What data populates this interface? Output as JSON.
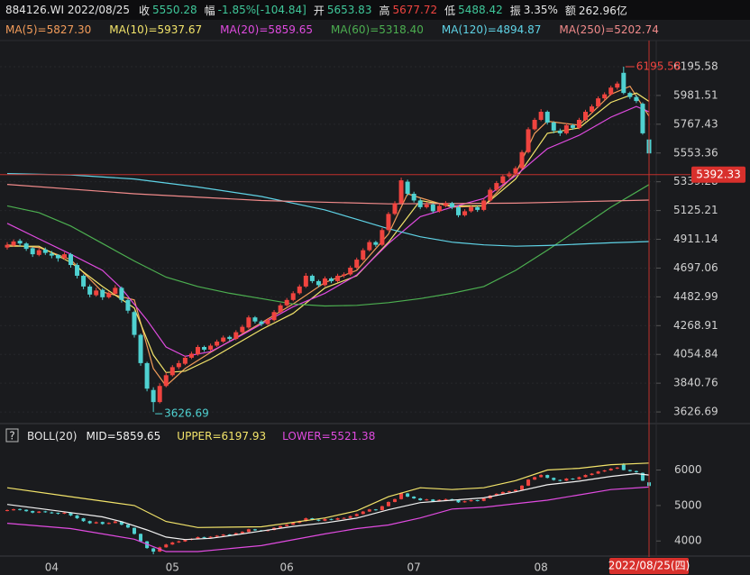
{
  "quote": {
    "code": "884126.WI 2022/08/25",
    "fields": [
      {
        "label": "收",
        "value": "5550.28",
        "color": "#3fc89a"
      },
      {
        "label": "幅",
        "value": "-1.85%[-104.84]",
        "color": "#3fc89a"
      },
      {
        "label": "开",
        "value": "5653.83",
        "color": "#3fc89a"
      },
      {
        "label": "高",
        "value": "5677.72",
        "color": "#f0443f"
      },
      {
        "label": "低",
        "value": "5488.42",
        "color": "#3fc89a"
      },
      {
        "label": "振",
        "value": "3.35%",
        "color": "#e6e6e6"
      },
      {
        "label": "额",
        "value": "262.96亿",
        "color": "#e6e6e6"
      }
    ]
  },
  "chart_data": [
    {
      "type": "candlestick",
      "up_color": "#f0443f",
      "down_color": "#4fd1d1",
      "grid": true,
      "categories": [
        null,
        null,
        null,
        null,
        null,
        null,
        null,
        "04",
        null,
        null,
        null,
        null,
        null,
        null,
        null,
        null,
        null,
        null,
        null,
        null,
        null,
        null,
        null,
        null,
        null,
        null,
        "05",
        null,
        null,
        null,
        null,
        null,
        null,
        null,
        null,
        null,
        null,
        null,
        null,
        null,
        null,
        null,
        null,
        null,
        "06",
        null,
        null,
        null,
        null,
        null,
        null,
        null,
        null,
        null,
        null,
        null,
        null,
        null,
        null,
        null,
        null,
        null,
        null,
        null,
        "07",
        null,
        null,
        null,
        null,
        null,
        null,
        null,
        null,
        null,
        null,
        null,
        null,
        null,
        null,
        null,
        null,
        null,
        null,
        null,
        "08",
        null,
        null,
        null,
        null,
        null,
        null,
        null,
        null,
        null,
        null,
        null,
        null,
        null,
        null,
        null,
        null,
        null
      ],
      "ohlc": [
        [
          4850,
          4890,
          4835,
          4870
        ],
        [
          4865,
          4910,
          4855,
          4895
        ],
        [
          4900,
          4915,
          4860,
          4880
        ],
        [
          4880,
          4890,
          4825,
          4840
        ],
        [
          4845,
          4855,
          4780,
          4800
        ],
        [
          4795,
          4845,
          4785,
          4830
        ],
        [
          4835,
          4850,
          4795,
          4810
        ],
        [
          4805,
          4825,
          4770,
          4790
        ],
        [
          4795,
          4800,
          4745,
          4770
        ],
        [
          4770,
          4815,
          4760,
          4800
        ],
        [
          4800,
          4810,
          4700,
          4720
        ],
        [
          4720,
          4735,
          4620,
          4640
        ],
        [
          4640,
          4650,
          4540,
          4560
        ],
        [
          4560,
          4575,
          4480,
          4500
        ],
        [
          4495,
          4550,
          4485,
          4530
        ],
        [
          4535,
          4545,
          4460,
          4480
        ],
        [
          4480,
          4525,
          4470,
          4510
        ],
        [
          4505,
          4570,
          4500,
          4550
        ],
        [
          4550,
          4560,
          4440,
          4460
        ],
        [
          4460,
          4470,
          4360,
          4380
        ],
        [
          4370,
          4380,
          4180,
          4200
        ],
        [
          4200,
          4210,
          3970,
          3990
        ],
        [
          3990,
          4000,
          3780,
          3800
        ],
        [
          3790,
          3810,
          3626.69,
          3700
        ],
        [
          3700,
          3840,
          3690,
          3820
        ],
        [
          3820,
          3920,
          3810,
          3900
        ],
        [
          3900,
          3975,
          3890,
          3960
        ],
        [
          3960,
          4010,
          3945,
          3990
        ],
        [
          3985,
          4045,
          3975,
          4030
        ],
        [
          4030,
          4075,
          4020,
          4060
        ],
        [
          4055,
          4125,
          4045,
          4110
        ],
        [
          4110,
          4120,
          4075,
          4090
        ],
        [
          4090,
          4135,
          4080,
          4120
        ],
        [
          4120,
          4165,
          4110,
          4150
        ],
        [
          4150,
          4195,
          4140,
          4180
        ],
        [
          4185,
          4195,
          4155,
          4170
        ],
        [
          4170,
          4235,
          4160,
          4220
        ],
        [
          4220,
          4275,
          4210,
          4260
        ],
        [
          4255,
          4345,
          4245,
          4330
        ],
        [
          4330,
          4340,
          4285,
          4300
        ],
        [
          4300,
          4310,
          4265,
          4280
        ],
        [
          4280,
          4325,
          4270,
          4310
        ],
        [
          4310,
          4385,
          4300,
          4370
        ],
        [
          4370,
          4435,
          4360,
          4420
        ],
        [
          4420,
          4475,
          4410,
          4460
        ],
        [
          4460,
          4525,
          4450,
          4510
        ],
        [
          4510,
          4575,
          4500,
          4560
        ],
        [
          4560,
          4660,
          4550,
          4640
        ],
        [
          4640,
          4650,
          4585,
          4600
        ],
        [
          4600,
          4610,
          4555,
          4570
        ],
        [
          4570,
          4635,
          4560,
          4620
        ],
        [
          4620,
          4630,
          4585,
          4600
        ],
        [
          4600,
          4655,
          4590,
          4640
        ],
        [
          4640,
          4665,
          4625,
          4650
        ],
        [
          4650,
          4715,
          4640,
          4700
        ],
        [
          4700,
          4775,
          4690,
          4760
        ],
        [
          4760,
          4845,
          4750,
          4830
        ],
        [
          4830,
          4905,
          4820,
          4890
        ],
        [
          4890,
          4900,
          4855,
          4870
        ],
        [
          4870,
          4995,
          4860,
          4980
        ],
        [
          4980,
          5115,
          4970,
          5100
        ],
        [
          5100,
          5195,
          5090,
          5180
        ],
        [
          5180,
          5370,
          5170,
          5350
        ],
        [
          5340,
          5355,
          5235,
          5250
        ],
        [
          5250,
          5265,
          5185,
          5200
        ],
        [
          5200,
          5215,
          5135,
          5150
        ],
        [
          5150,
          5190,
          5140,
          5170
        ],
        [
          5170,
          5180,
          5105,
          5120
        ],
        [
          5120,
          5175,
          5110,
          5160
        ],
        [
          5160,
          5195,
          5150,
          5180
        ],
        [
          5180,
          5190,
          5135,
          5150
        ],
        [
          5150,
          5160,
          5075,
          5090
        ],
        [
          5090,
          5135,
          5080,
          5120
        ],
        [
          5120,
          5165,
          5110,
          5150
        ],
        [
          5150,
          5160,
          5115,
          5130
        ],
        [
          5130,
          5215,
          5120,
          5200
        ],
        [
          5200,
          5295,
          5190,
          5280
        ],
        [
          5280,
          5345,
          5270,
          5330
        ],
        [
          5330,
          5395,
          5320,
          5380
        ],
        [
          5380,
          5415,
          5365,
          5400
        ],
        [
          5400,
          5455,
          5390,
          5440
        ],
        [
          5440,
          5575,
          5430,
          5560
        ],
        [
          5560,
          5745,
          5550,
          5730
        ],
        [
          5730,
          5815,
          5720,
          5800
        ],
        [
          5800,
          5880,
          5790,
          5860
        ],
        [
          5860,
          5870,
          5765,
          5780
        ],
        [
          5780,
          5790,
          5700,
          5720
        ],
        [
          5720,
          5735,
          5680,
          5700
        ],
        [
          5700,
          5775,
          5690,
          5760
        ],
        [
          5760,
          5770,
          5725,
          5740
        ],
        [
          5740,
          5815,
          5730,
          5800
        ],
        [
          5800,
          5875,
          5790,
          5860
        ],
        [
          5860,
          5915,
          5850,
          5900
        ],
        [
          5900,
          5975,
          5890,
          5960
        ],
        [
          5960,
          6005,
          5945,
          5990
        ],
        [
          5990,
          6055,
          5980,
          6040
        ],
        [
          6040,
          6085,
          6025,
          6070
        ],
        [
          6150,
          6195.58,
          5990,
          6000
        ],
        [
          6000,
          6010,
          5955,
          5970
        ],
        [
          5970,
          5985,
          5925,
          5940
        ],
        [
          5920,
          5930,
          5690,
          5700
        ],
        [
          5653.83,
          5677.72,
          5488.42,
          5550.28
        ]
      ],
      "series": [
        {
          "name": "MA(5)=5827.30",
          "color": "#f39c5a",
          "x": [
            0,
            5,
            10,
            15,
            20,
            23,
            25,
            28,
            32,
            36,
            40,
            45,
            50,
            55,
            60,
            63,
            65,
            70,
            75,
            80,
            83,
            85,
            90,
            95,
            98,
            101
          ],
          "values": [
            4870,
            4850,
            4760,
            4520,
            4460,
            3950,
            3820,
            3950,
            4070,
            4180,
            4290,
            4430,
            4590,
            4680,
            4950,
            5250,
            5220,
            5150,
            5160,
            5400,
            5700,
            5790,
            5760,
            5990,
            6050,
            5827.3
          ]
        },
        {
          "name": "MA(10)=5937.67",
          "color": "#f3e46a",
          "x": [
            0,
            5,
            10,
            15,
            20,
            23,
            25,
            28,
            32,
            36,
            40,
            45,
            50,
            55,
            60,
            65,
            70,
            75,
            80,
            85,
            90,
            95,
            99,
            101
          ],
          "values": [
            4860,
            4860,
            4740,
            4560,
            4400,
            4050,
            3920,
            3930,
            4020,
            4130,
            4240,
            4360,
            4550,
            4640,
            4890,
            5200,
            5160,
            5160,
            5360,
            5700,
            5740,
            5930,
            6000,
            5937.67
          ]
        },
        {
          "name": "MA(20)=5859.65",
          "color": "#e04be0",
          "x": [
            0,
            5,
            10,
            15,
            18,
            22,
            25,
            28,
            32,
            36,
            40,
            45,
            50,
            55,
            60,
            65,
            70,
            75,
            80,
            85,
            90,
            95,
            99,
            101
          ],
          "values": [
            5030,
            4915,
            4800,
            4680,
            4545,
            4310,
            4110,
            4040,
            4075,
            4175,
            4280,
            4410,
            4510,
            4645,
            4880,
            5080,
            5150,
            5215,
            5385,
            5585,
            5685,
            5820,
            5900,
            5859.65
          ]
        },
        {
          "name": "MA(60)=5318.40",
          "color": "#4caf50",
          "x": [
            0,
            5,
            10,
            15,
            20,
            25,
            30,
            35,
            40,
            45,
            50,
            55,
            60,
            65,
            70,
            75,
            80,
            85,
            90,
            95,
            101
          ],
          "values": [
            5160,
            5110,
            5010,
            4880,
            4750,
            4630,
            4560,
            4510,
            4470,
            4430,
            4415,
            4420,
            4440,
            4470,
            4510,
            4560,
            4680,
            4830,
            4990,
            5150,
            5318.4
          ]
        },
        {
          "name": "MA(120)=4894.87",
          "color": "#5fd3e6",
          "x": [
            0,
            10,
            20,
            30,
            40,
            50,
            55,
            60,
            65,
            70,
            75,
            80,
            85,
            90,
            95,
            101
          ],
          "values": [
            5400,
            5390,
            5360,
            5300,
            5230,
            5130,
            5060,
            4990,
            4930,
            4890,
            4870,
            4860,
            4865,
            4875,
            4885,
            4894.87
          ]
        },
        {
          "name": "MA(250)=5202.74",
          "color": "#f08a8a",
          "x": [
            0,
            20,
            40,
            60,
            80,
            101
          ],
          "values": [
            5320,
            5250,
            5200,
            5175,
            5180,
            5202.74
          ]
        }
      ],
      "ylim": [
        3540,
        6390
      ],
      "yticks": [
        3626.69,
        3840.76,
        4054.84,
        4268.91,
        4482.99,
        4697.06,
        4911.14,
        5125.21,
        5339.28,
        5553.36,
        5767.43,
        5981.51,
        6195.58
      ],
      "crosshair": {
        "label": "2022/08/25(四)",
        "value": 5392.33
      }
    },
    {
      "type": "boll",
      "title": "BOLL(20)",
      "help_icon": "?",
      "series": [
        {
          "name": "MID=5859.65",
          "color": "#f2f2f2",
          "x": [
            0,
            5,
            10,
            15,
            18,
            22,
            25,
            28,
            32,
            36,
            40,
            45,
            50,
            55,
            60,
            65,
            70,
            75,
            80,
            85,
            90,
            95,
            99,
            101
          ],
          "values": [
            5030,
            4915,
            4800,
            4680,
            4545,
            4310,
            4110,
            4040,
            4075,
            4175,
            4280,
            4410,
            4510,
            4645,
            4880,
            5080,
            5150,
            5215,
            5385,
            5585,
            5685,
            5820,
            5900,
            5859.65
          ]
        },
        {
          "name": "UPPER=6197.93",
          "color": "#f3e46a",
          "x": [
            0,
            10,
            20,
            25,
            30,
            40,
            50,
            55,
            60,
            65,
            70,
            75,
            80,
            85,
            90,
            95,
            101
          ],
          "values": [
            5500,
            5250,
            5000,
            4550,
            4380,
            4400,
            4650,
            4850,
            5250,
            5500,
            5450,
            5500,
            5700,
            6000,
            6050,
            6150,
            6197.93
          ]
        },
        {
          "name": "LOWER=5521.38",
          "color": "#e04be0",
          "x": [
            0,
            10,
            20,
            25,
            30,
            40,
            50,
            55,
            60,
            65,
            70,
            75,
            80,
            85,
            90,
            95,
            101
          ],
          "values": [
            4500,
            4350,
            4050,
            3700,
            3700,
            3870,
            4200,
            4350,
            4450,
            4650,
            4900,
            4950,
            5050,
            5150,
            5300,
            5450,
            5521.38
          ]
        }
      ],
      "ylim": [
        3625,
        6700
      ],
      "yticks": [
        4000,
        5000,
        6000
      ]
    }
  ]
}
